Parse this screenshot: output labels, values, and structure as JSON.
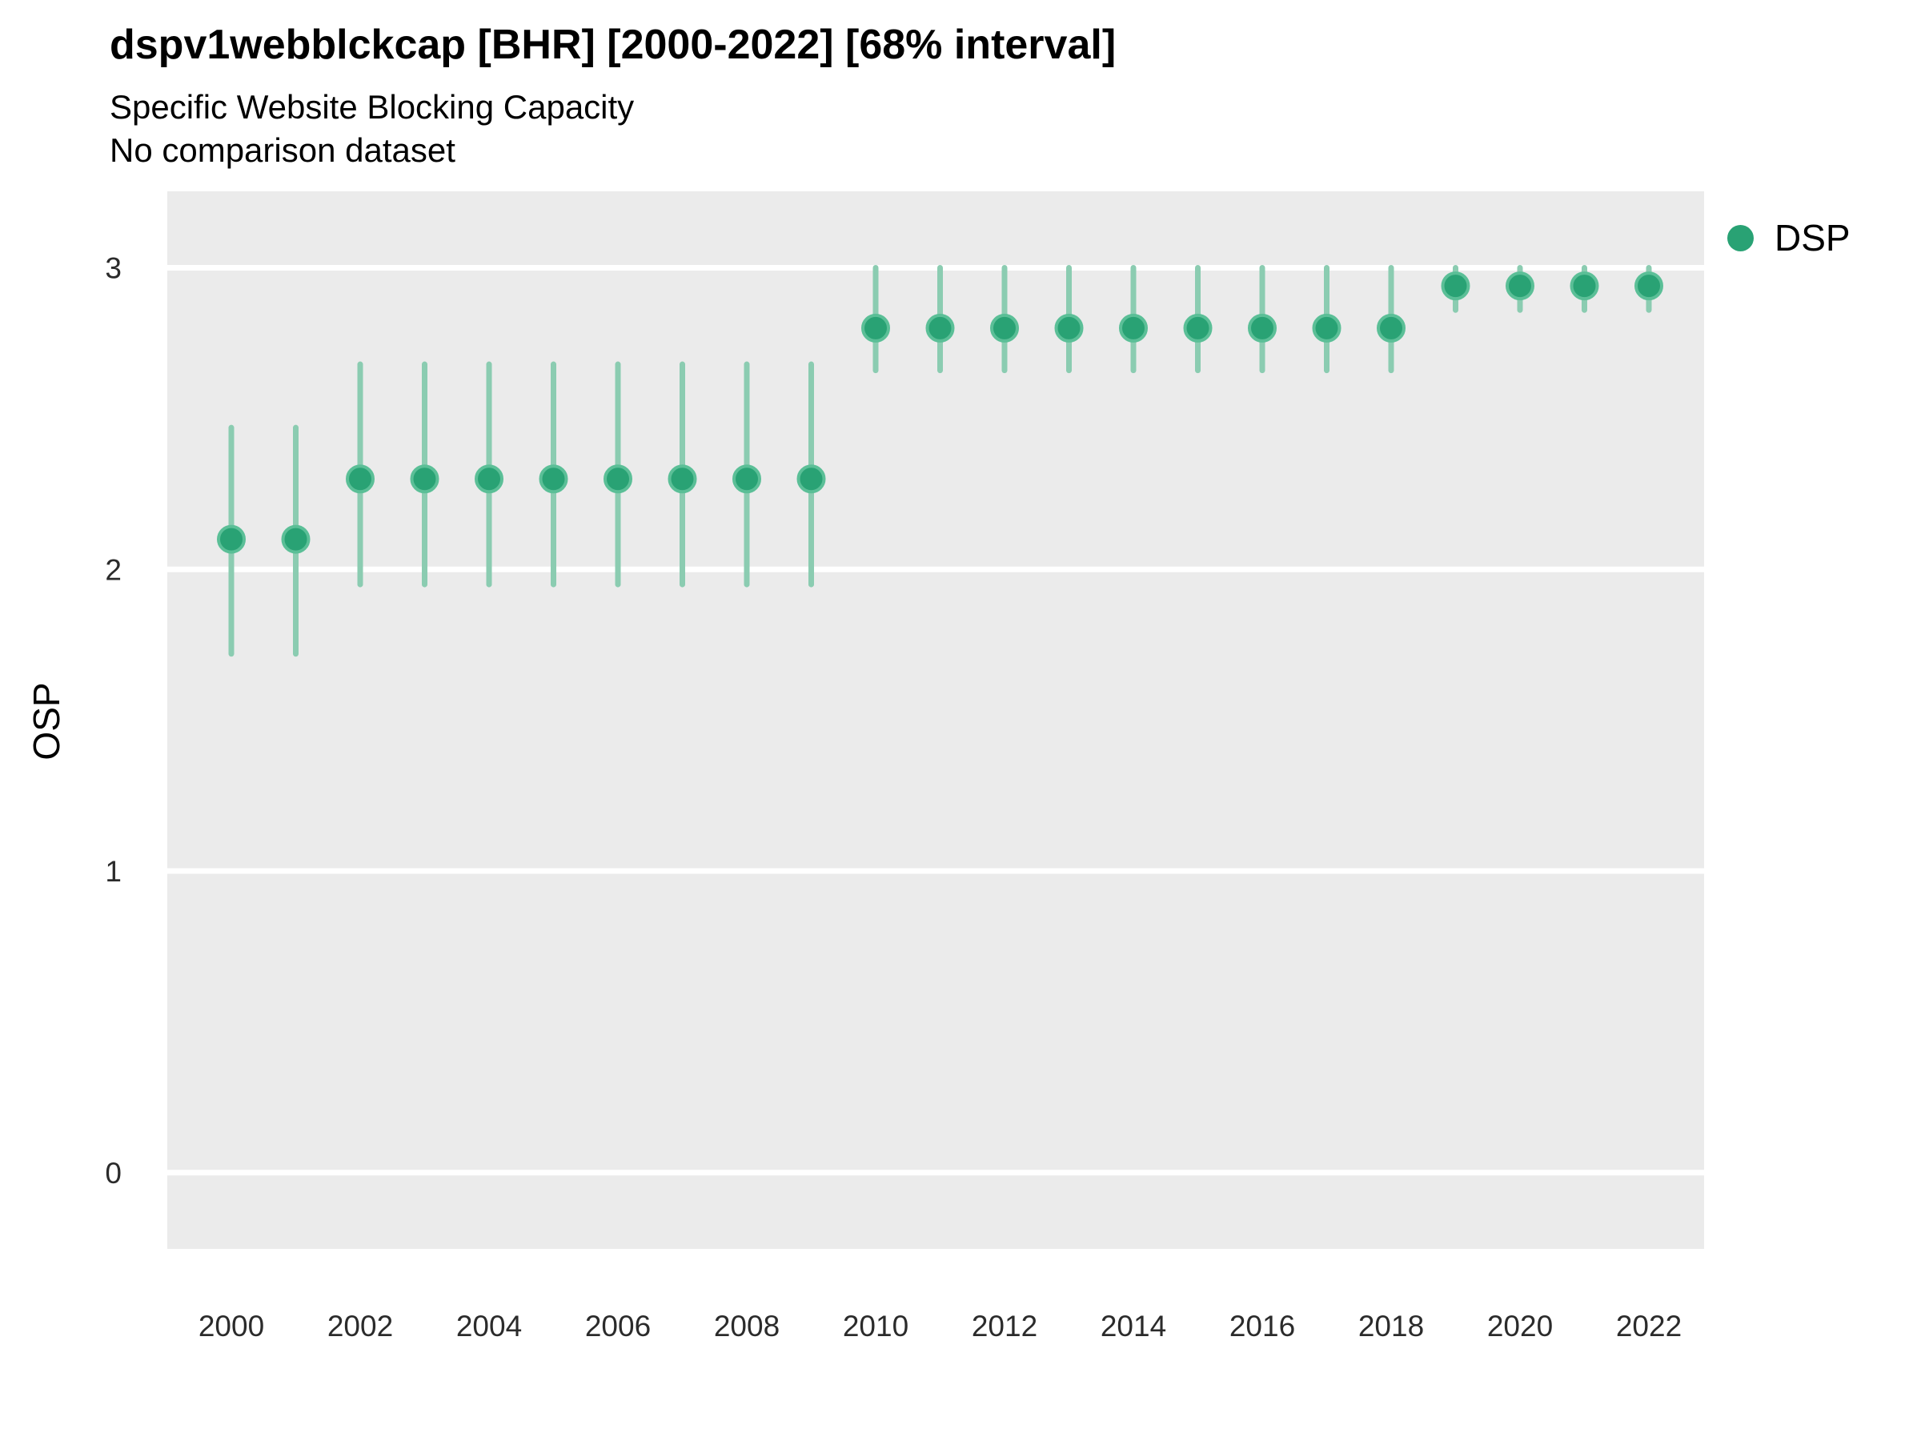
{
  "header": {
    "title": "dspv1webblckcap [BHR] [2000-2022] [68% interval]",
    "subtitle1": "Specific Website Blocking Capacity",
    "subtitle2": "No comparison dataset"
  },
  "legend": {
    "items": [
      {
        "label": "DSP",
        "color": "#29a274"
      }
    ]
  },
  "chart_data": {
    "type": "scatter",
    "subtype": "pointrange",
    "title": "dspv1webblckcap [BHR] [2000-2022] [68% interval]",
    "subtitle": "Specific Website Blocking Capacity",
    "note": "No comparison dataset",
    "interval": "68%",
    "xlabel": "",
    "ylabel": "OSP",
    "legend_entries": [
      "DSP"
    ],
    "legend_position": "right",
    "grid": "horizontal-major-only",
    "xlim": [
      1999,
      2023
    ],
    "ylim": [
      -0.25,
      3.25
    ],
    "xticks": [
      2000,
      2002,
      2004,
      2006,
      2008,
      2010,
      2012,
      2014,
      2016,
      2018,
      2020,
      2022
    ],
    "yticks": [
      0,
      1,
      2,
      3
    ],
    "series": [
      {
        "name": "DSP",
        "points": [
          {
            "year": 2000,
            "value": 2.1,
            "lower": 1.72,
            "upper": 2.47
          },
          {
            "year": 2001,
            "value": 2.1,
            "lower": 1.72,
            "upper": 2.47
          },
          {
            "year": 2002,
            "value": 2.3,
            "lower": 1.95,
            "upper": 2.68
          },
          {
            "year": 2003,
            "value": 2.3,
            "lower": 1.95,
            "upper": 2.68
          },
          {
            "year": 2004,
            "value": 2.3,
            "lower": 1.95,
            "upper": 2.68
          },
          {
            "year": 2005,
            "value": 2.3,
            "lower": 1.95,
            "upper": 2.68
          },
          {
            "year": 2006,
            "value": 2.3,
            "lower": 1.95,
            "upper": 2.68
          },
          {
            "year": 2007,
            "value": 2.3,
            "lower": 1.95,
            "upper": 2.68
          },
          {
            "year": 2008,
            "value": 2.3,
            "lower": 1.95,
            "upper": 2.68
          },
          {
            "year": 2009,
            "value": 2.3,
            "lower": 1.95,
            "upper": 2.68
          },
          {
            "year": 2010,
            "value": 2.8,
            "lower": 2.66,
            "upper": 3.0
          },
          {
            "year": 2011,
            "value": 2.8,
            "lower": 2.66,
            "upper": 3.0
          },
          {
            "year": 2012,
            "value": 2.8,
            "lower": 2.66,
            "upper": 3.0
          },
          {
            "year": 2013,
            "value": 2.8,
            "lower": 2.66,
            "upper": 3.0
          },
          {
            "year": 2014,
            "value": 2.8,
            "lower": 2.66,
            "upper": 3.0
          },
          {
            "year": 2015,
            "value": 2.8,
            "lower": 2.66,
            "upper": 3.0
          },
          {
            "year": 2016,
            "value": 2.8,
            "lower": 2.66,
            "upper": 3.0
          },
          {
            "year": 2017,
            "value": 2.8,
            "lower": 2.66,
            "upper": 3.0
          },
          {
            "year": 2018,
            "value": 2.8,
            "lower": 2.66,
            "upper": 3.0
          },
          {
            "year": 2019,
            "value": 2.94,
            "lower": 2.86,
            "upper": 3.0
          },
          {
            "year": 2020,
            "value": 2.94,
            "lower": 2.86,
            "upper": 3.0
          },
          {
            "year": 2021,
            "value": 2.94,
            "lower": 2.86,
            "upper": 3.0
          },
          {
            "year": 2022,
            "value": 2.94,
            "lower": 2.86,
            "upper": 3.0
          }
        ]
      }
    ],
    "colors": {
      "point": "#29a274",
      "point_stroke": "#5bbf97",
      "interval_line": "#8bccb1",
      "panel_bg": "#ebebeb",
      "gridline": "#ffffff",
      "axis_text": "#2b2b2b"
    }
  }
}
